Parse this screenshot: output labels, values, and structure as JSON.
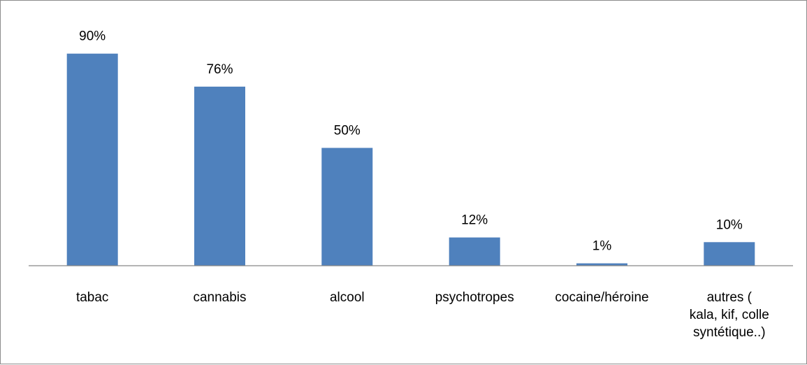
{
  "chart_data": {
    "type": "bar",
    "title": "",
    "xlabel": "",
    "ylabel": "",
    "categories": [
      "tabac",
      "cannabis",
      "alcool",
      "psychotropes",
      "cocaine/héroine",
      [
        "autres (",
        "kala, kif, colle",
        "syntétique..)"
      ]
    ],
    "values": [
      90,
      76,
      50,
      12,
      1,
      10
    ],
    "data_labels": [
      "90%",
      "76%",
      "50%",
      "12%",
      "1%",
      "10%"
    ],
    "ylim": [
      0,
      100
    ],
    "grid": false,
    "legend": "none",
    "bar_color": "#4f81bd",
    "axis_color": "#868686"
  }
}
